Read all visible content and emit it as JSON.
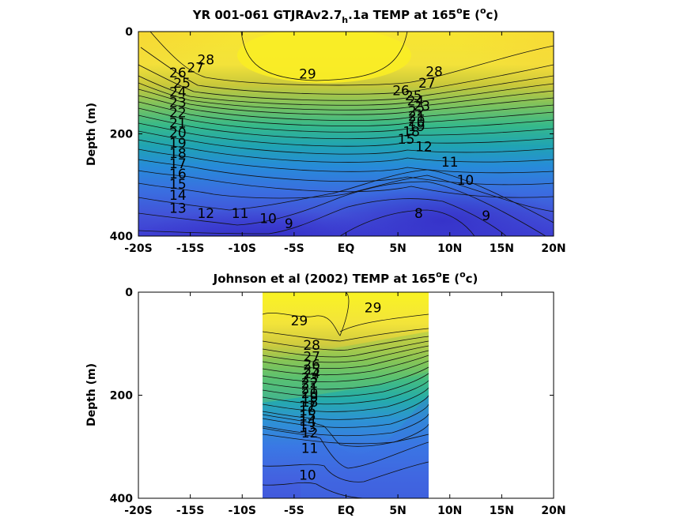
{
  "chart_data": [
    {
      "type": "contour",
      "title_main": "YR 001-061 GTJRAv2.7",
      "title_sub": "h",
      "title_tail": ".1a TEMP at 165",
      "title_deg": "o",
      "title_end1": "E (",
      "title_end2": "c)",
      "ylabel": "Depth (m)",
      "xlim": [
        -20,
        20
      ],
      "ylim": [
        0,
        400
      ],
      "x_ticks": [
        -20,
        -15,
        -10,
        -5,
        0,
        5,
        10,
        15,
        20
      ],
      "x_tick_labels": [
        "-20S",
        "-15S",
        "-10S",
        "-5S",
        "EQ",
        "5N",
        "10N",
        "15N",
        "20N"
      ],
      "y_ticks": [
        0,
        200,
        400
      ],
      "y_tick_labels": [
        "0",
        "200",
        "400"
      ],
      "data_range_lat": [
        -20,
        20
      ],
      "contour_levels": [
        8,
        9,
        10,
        11,
        12,
        13,
        14,
        15,
        16,
        17,
        18,
        19,
        20,
        21,
        22,
        23,
        24,
        25,
        26,
        27,
        28,
        29
      ],
      "contour_labels": [
        {
          "text": "28",
          "lat": -13.5,
          "depth": 55
        },
        {
          "text": "27",
          "lat": -14.5,
          "depth": 70
        },
        {
          "text": "26",
          "lat": -16.2,
          "depth": 80
        },
        {
          "text": "29",
          "lat": -3.7,
          "depth": 83
        },
        {
          "text": "25",
          "lat": -15.8,
          "depth": 100
        },
        {
          "text": "24",
          "lat": -16.2,
          "depth": 118
        },
        {
          "text": "23",
          "lat": -16.2,
          "depth": 138
        },
        {
          "text": "22",
          "lat": -16.2,
          "depth": 158
        },
        {
          "text": "21",
          "lat": -16.2,
          "depth": 178
        },
        {
          "text": "20",
          "lat": -16.2,
          "depth": 198
        },
        {
          "text": "19",
          "lat": -16.2,
          "depth": 218
        },
        {
          "text": "18",
          "lat": -16.2,
          "depth": 238
        },
        {
          "text": "17",
          "lat": -16.2,
          "depth": 258
        },
        {
          "text": "16",
          "lat": -16.2,
          "depth": 278
        },
        {
          "text": "15",
          "lat": -16.2,
          "depth": 298
        },
        {
          "text": "14",
          "lat": -16.2,
          "depth": 320
        },
        {
          "text": "13",
          "lat": -16.2,
          "depth": 345
        },
        {
          "text": "12",
          "lat": -13.5,
          "depth": 355
        },
        {
          "text": "11",
          "lat": -10.2,
          "depth": 355
        },
        {
          "text": "10",
          "lat": -7.5,
          "depth": 365
        },
        {
          "text": "9",
          "lat": -5.5,
          "depth": 375
        },
        {
          "text": "28",
          "lat": 8.5,
          "depth": 78
        },
        {
          "text": "27",
          "lat": 7.8,
          "depth": 100
        },
        {
          "text": "26",
          "lat": 5.3,
          "depth": 115
        },
        {
          "text": "25",
          "lat": 6.5,
          "depth": 125
        },
        {
          "text": "24",
          "lat": 6.7,
          "depth": 135
        },
        {
          "text": "23",
          "lat": 7.3,
          "depth": 145
        },
        {
          "text": "22",
          "lat": 6.8,
          "depth": 155
        },
        {
          "text": "21",
          "lat": 6.8,
          "depth": 165
        },
        {
          "text": "20",
          "lat": 6.8,
          "depth": 175
        },
        {
          "text": "19",
          "lat": 6.8,
          "depth": 185
        },
        {
          "text": "18",
          "lat": 6.3,
          "depth": 195
        },
        {
          "text": "15",
          "lat": 5.8,
          "depth": 210
        },
        {
          "text": "12",
          "lat": 7.5,
          "depth": 225
        },
        {
          "text": "11",
          "lat": 10.0,
          "depth": 255
        },
        {
          "text": "10",
          "lat": 11.5,
          "depth": 290
        },
        {
          "text": "8",
          "lat": 7.0,
          "depth": 355
        },
        {
          "text": "9",
          "lat": 13.5,
          "depth": 360
        }
      ]
    },
    {
      "type": "contour",
      "title_main": "Johnson et al (2002) TEMP at 165",
      "title_deg": "o",
      "title_end1": "E (",
      "title_end2": "c)",
      "ylabel": "Depth (m)",
      "xlim": [
        -20,
        20
      ],
      "ylim": [
        0,
        400
      ],
      "x_ticks": [
        -20,
        -15,
        -10,
        -5,
        0,
        5,
        10,
        15,
        20
      ],
      "x_tick_labels": [
        "-20S",
        "-15S",
        "-10S",
        "-5S",
        "EQ",
        "5N",
        "10N",
        "15N",
        "20N"
      ],
      "y_ticks": [
        0,
        200,
        400
      ],
      "y_tick_labels": [
        "0",
        "200",
        "400"
      ],
      "data_range_lat": [
        -8,
        8
      ],
      "contour_levels": [
        10,
        11,
        12,
        13,
        14,
        15,
        16,
        17,
        18,
        19,
        20,
        21,
        22,
        23,
        24,
        25,
        26,
        27,
        28,
        29
      ],
      "contour_labels": [
        {
          "text": "29",
          "lat": -4.5,
          "depth": 55
        },
        {
          "text": "29",
          "lat": 2.6,
          "depth": 30
        },
        {
          "text": "28",
          "lat": -3.3,
          "depth": 103
        },
        {
          "text": "27",
          "lat": -3.3,
          "depth": 125
        },
        {
          "text": "26",
          "lat": -3.3,
          "depth": 140
        },
        {
          "text": "25",
          "lat": -3.3,
          "depth": 150
        },
        {
          "text": "24",
          "lat": -3.3,
          "depth": 158
        },
        {
          "text": "23",
          "lat": -3.5,
          "depth": 166
        },
        {
          "text": "22",
          "lat": -3.5,
          "depth": 176
        },
        {
          "text": "21",
          "lat": -3.5,
          "depth": 186
        },
        {
          "text": "20",
          "lat": -3.5,
          "depth": 196
        },
        {
          "text": "19",
          "lat": -3.5,
          "depth": 205
        },
        {
          "text": "18",
          "lat": -3.5,
          "depth": 213
        },
        {
          "text": "17",
          "lat": -3.7,
          "depth": 221
        },
        {
          "text": "16",
          "lat": -3.7,
          "depth": 230
        },
        {
          "text": "15",
          "lat": -3.7,
          "depth": 240
        },
        {
          "text": "14",
          "lat": -3.7,
          "depth": 250
        },
        {
          "text": "13",
          "lat": -3.7,
          "depth": 262
        },
        {
          "text": "12",
          "lat": -3.5,
          "depth": 273
        },
        {
          "text": "11",
          "lat": -3.5,
          "depth": 303
        },
        {
          "text": "10",
          "lat": -3.7,
          "depth": 355
        }
      ]
    }
  ]
}
